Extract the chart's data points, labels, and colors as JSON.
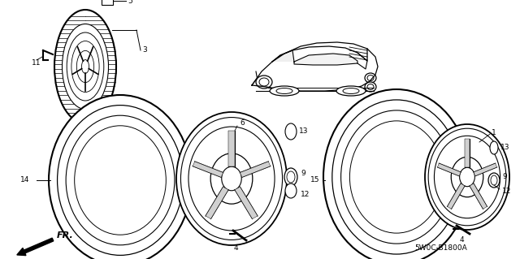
{
  "bg_color": "#ffffff",
  "line_color": "#000000",
  "fig_width": 6.4,
  "fig_height": 3.19,
  "dpi": 100,
  "diagram_code": "5W0C-B1800A"
}
